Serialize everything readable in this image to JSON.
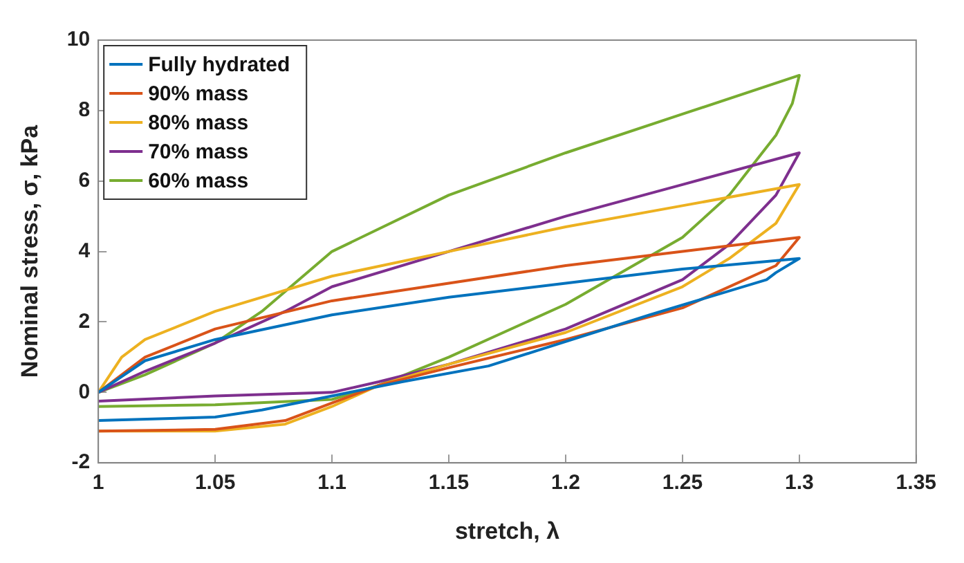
{
  "chart_data": {
    "type": "line",
    "xlabel": "stretch, λ",
    "ylabel": "Nominal stress, σ, kPa",
    "xlim": [
      1,
      1.35
    ],
    "xticks": [
      1,
      1.05,
      1.1,
      1.15,
      1.2,
      1.25,
      1.3,
      1.35
    ],
    "ylim": [
      -2,
      10
    ],
    "yticks": [
      -2,
      0,
      2,
      4,
      6,
      8,
      10
    ],
    "grid": false,
    "legend": "top left",
    "marker": "none",
    "line_style": "solid",
    "series": [
      {
        "name": "Fully hydrated",
        "color": "#0072bd",
        "x": [
          1,
          1.02,
          1.05,
          1.1,
          1.15,
          1.2,
          1.25,
          1.3,
          1.29,
          1.286,
          1.236,
          1.167,
          1.13,
          1.1,
          1.07,
          1.05,
          1.0
        ],
        "values": [
          0,
          0.9,
          1.5,
          2.2,
          2.7,
          3.1,
          3.5,
          3.8,
          3.4,
          3.2,
          2.2,
          0.75,
          0.3,
          -0.1,
          -0.5,
          -0.7,
          -0.8
        ]
      },
      {
        "name": "90% mass",
        "color": "#d95319",
        "x": [
          1,
          1.02,
          1.05,
          1.1,
          1.15,
          1.2,
          1.25,
          1.3,
          1.29,
          1.25,
          1.2,
          1.15,
          1.12,
          1.1,
          1.08,
          1.05,
          1.0
        ],
        "values": [
          0,
          1.0,
          1.8,
          2.6,
          3.1,
          3.6,
          4.0,
          4.4,
          3.6,
          2.4,
          1.5,
          0.7,
          0.2,
          -0.3,
          -0.8,
          -1.05,
          -1.1
        ]
      },
      {
        "name": "80% mass",
        "color": "#edb120",
        "x": [
          1,
          1.01,
          1.02,
          1.05,
          1.1,
          1.15,
          1.2,
          1.25,
          1.3,
          1.29,
          1.27,
          1.25,
          1.2,
          1.15,
          1.12,
          1.1,
          1.08,
          1.05,
          1.0
        ],
        "values": [
          0,
          1.0,
          1.5,
          2.3,
          3.3,
          4.0,
          4.7,
          5.3,
          5.9,
          4.8,
          3.8,
          3.0,
          1.7,
          0.8,
          0.2,
          -0.4,
          -0.9,
          -1.1,
          -1.1
        ]
      },
      {
        "name": "70% mass",
        "color": "#7e2f8e",
        "x": [
          1,
          1.02,
          1.05,
          1.08,
          1.1,
          1.15,
          1.2,
          1.25,
          1.3,
          1.29,
          1.27,
          1.25,
          1.2,
          1.15,
          1.12,
          1.1,
          1.05,
          1.0
        ],
        "values": [
          0,
          0.6,
          1.4,
          2.3,
          3.0,
          4.0,
          5.0,
          5.9,
          6.8,
          5.6,
          4.2,
          3.2,
          1.8,
          0.8,
          0.3,
          0,
          -0.1,
          -0.25
        ]
      },
      {
        "name": "60% mass",
        "color": "#77ac30",
        "x": [
          1,
          1.02,
          1.05,
          1.07,
          1.1,
          1.15,
          1.2,
          1.25,
          1.3,
          1.297,
          1.29,
          1.27,
          1.25,
          1.2,
          1.15,
          1.12,
          1.1,
          1.05,
          1.0
        ],
        "values": [
          0,
          0.5,
          1.4,
          2.3,
          4.0,
          5.6,
          6.8,
          7.9,
          9.0,
          8.2,
          7.3,
          5.6,
          4.4,
          2.5,
          1.0,
          0.2,
          -0.2,
          -0.35,
          -0.4
        ]
      }
    ]
  }
}
